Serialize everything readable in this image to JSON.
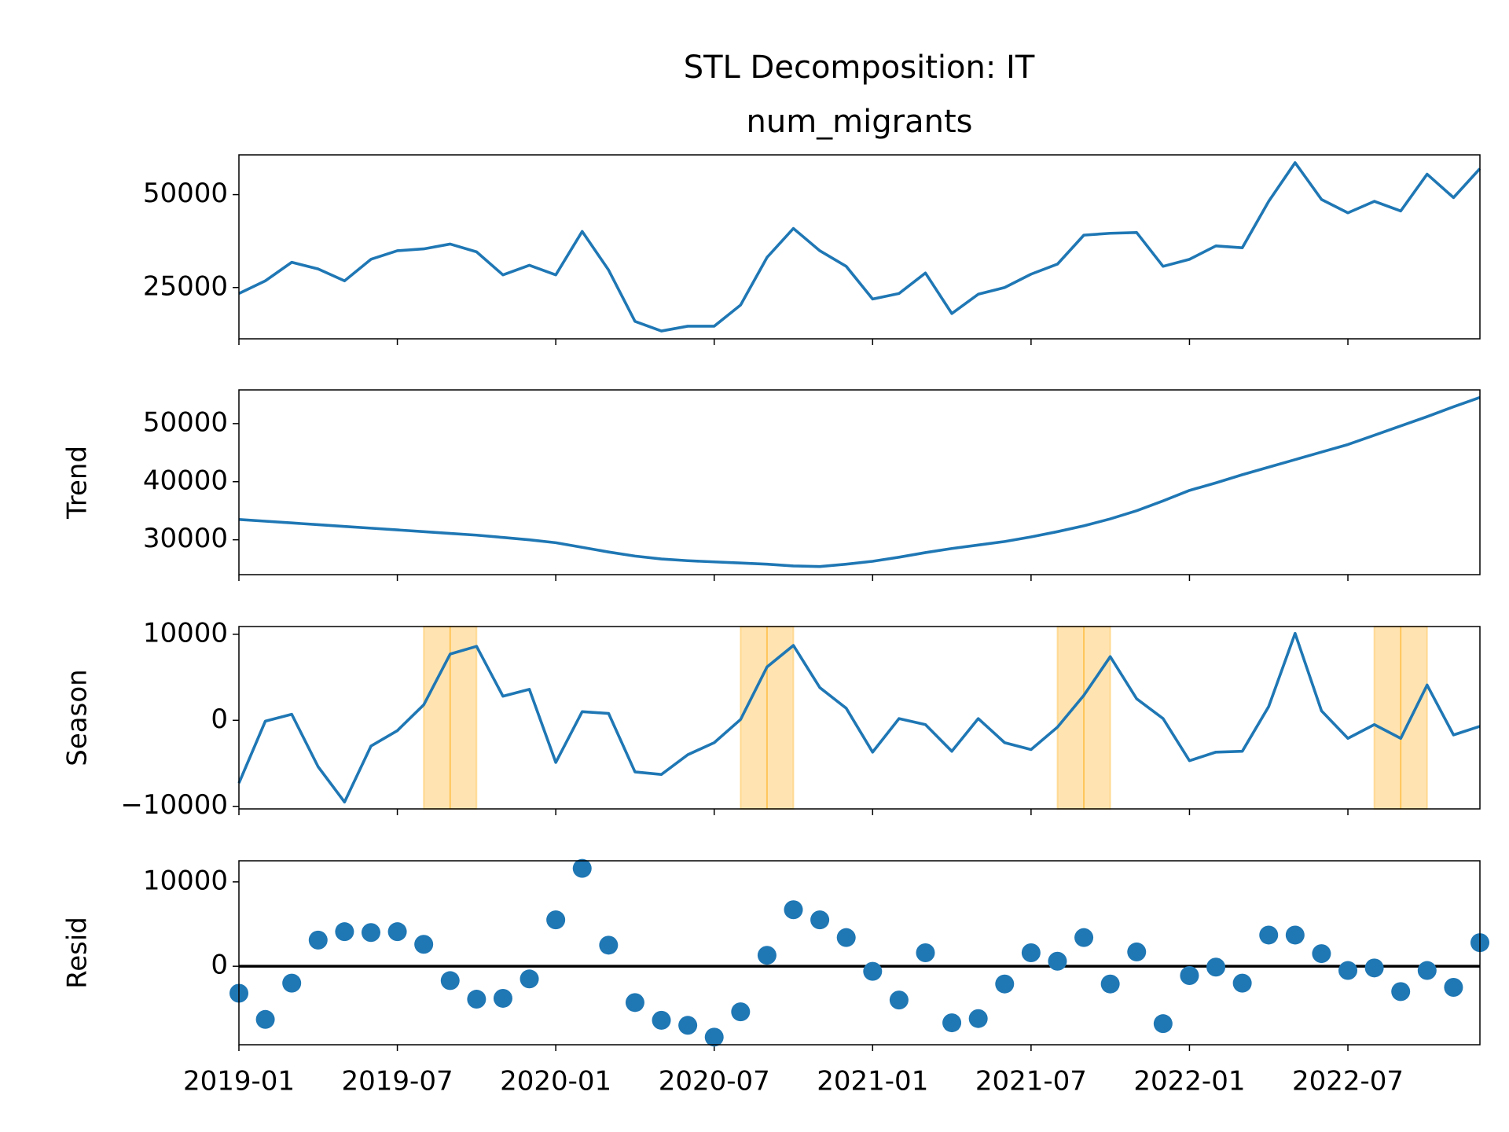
{
  "title": "STL Decomposition: IT",
  "chart_data": [
    {
      "type": "line",
      "title": "num_migrants",
      "color": "#1f77b4",
      "x": [
        "2019-01",
        "2019-02",
        "2019-03",
        "2019-04",
        "2019-05",
        "2019-06",
        "2019-07",
        "2019-08",
        "2019-09",
        "2019-10",
        "2019-11",
        "2019-12",
        "2020-01",
        "2020-02",
        "2020-03",
        "2020-04",
        "2020-05",
        "2020-06",
        "2020-07",
        "2020-08",
        "2020-09",
        "2020-10",
        "2020-11",
        "2020-12",
        "2021-01",
        "2021-02",
        "2021-03",
        "2021-04",
        "2021-05",
        "2021-06",
        "2021-07",
        "2021-08",
        "2021-09",
        "2021-10",
        "2021-11",
        "2021-12",
        "2022-01",
        "2022-02",
        "2022-03",
        "2022-04",
        "2022-05",
        "2022-06",
        "2022-07",
        "2022-08",
        "2022-09",
        "2022-10",
        "2022-11",
        "2022-12"
      ],
      "values": [
        23400,
        26800,
        31800,
        30000,
        26800,
        32600,
        34900,
        35400,
        36700,
        34600,
        28400,
        31000,
        28400,
        40100,
        29700,
        15900,
        13300,
        14600,
        14600,
        20300,
        33100,
        40900,
        34900,
        30700,
        21900,
        23400,
        28900,
        18000,
        23200,
        25000,
        28600,
        31300,
        39100,
        39600,
        39800,
        30700,
        32600,
        36200,
        35700,
        48200,
        58600,
        48700,
        45100,
        48200,
        45600,
        55500,
        49200,
        57000
      ],
      "xlim": [
        "2019-01",
        "2022-12"
      ],
      "xticks": [
        "2019-01",
        "2019-07",
        "2020-01",
        "2020-07",
        "2021-01",
        "2021-07",
        "2022-01",
        "2022-07"
      ],
      "ylim": [
        11200,
        60700
      ],
      "yticks": [
        25000,
        50000
      ]
    },
    {
      "type": "line",
      "ylabel": "Trend",
      "color": "#1f77b4",
      "x": [
        "2019-01",
        "2019-02",
        "2019-03",
        "2019-04",
        "2019-05",
        "2019-06",
        "2019-07",
        "2019-08",
        "2019-09",
        "2019-10",
        "2019-11",
        "2019-12",
        "2020-01",
        "2020-02",
        "2020-03",
        "2020-04",
        "2020-05",
        "2020-06",
        "2020-07",
        "2020-08",
        "2020-09",
        "2020-10",
        "2020-11",
        "2020-12",
        "2021-01",
        "2021-02",
        "2021-03",
        "2021-04",
        "2021-05",
        "2021-06",
        "2021-07",
        "2021-08",
        "2021-09",
        "2021-10",
        "2021-11",
        "2021-12",
        "2022-01",
        "2022-02",
        "2022-03",
        "2022-04",
        "2022-05",
        "2022-06",
        "2022-07",
        "2022-08",
        "2022-09",
        "2022-10",
        "2022-11",
        "2022-12"
      ],
      "values": [
        33500,
        33200,
        32900,
        32600,
        32300,
        32000,
        31700,
        31400,
        31100,
        30800,
        30400,
        30000,
        29500,
        28700,
        27900,
        27200,
        26700,
        26400,
        26200,
        26000,
        25800,
        25500,
        25400,
        25800,
        26300,
        27000,
        27800,
        28500,
        29100,
        29700,
        30500,
        31400,
        32400,
        33600,
        35000,
        36700,
        38500,
        39800,
        41200,
        42500,
        43800,
        45100,
        46400,
        48000,
        49600,
        51200,
        52900,
        54500
      ],
      "xlim": [
        "2019-01",
        "2022-12"
      ],
      "xticks": [
        "2019-01",
        "2019-07",
        "2020-01",
        "2020-07",
        "2021-01",
        "2021-07",
        "2022-01",
        "2022-07"
      ],
      "ylim": [
        24000,
        55800
      ],
      "yticks": [
        30000,
        40000,
        50000
      ]
    },
    {
      "type": "line",
      "ylabel": "Season",
      "color": "#1f77b4",
      "span_color": "#ffa500",
      "x": [
        "2019-01",
        "2019-02",
        "2019-03",
        "2019-04",
        "2019-05",
        "2019-06",
        "2019-07",
        "2019-08",
        "2019-09",
        "2019-10",
        "2019-11",
        "2019-12",
        "2020-01",
        "2020-02",
        "2020-03",
        "2020-04",
        "2020-05",
        "2020-06",
        "2020-07",
        "2020-08",
        "2020-09",
        "2020-10",
        "2020-11",
        "2020-12",
        "2021-01",
        "2021-02",
        "2021-03",
        "2021-04",
        "2021-05",
        "2021-06",
        "2021-07",
        "2021-08",
        "2021-09",
        "2021-10",
        "2021-11",
        "2021-12",
        "2022-01",
        "2022-02",
        "2022-03",
        "2022-04",
        "2022-05",
        "2022-06",
        "2022-07",
        "2022-08",
        "2022-09",
        "2022-10",
        "2022-11",
        "2022-12"
      ],
      "values": [
        -7300,
        -100,
        700,
        -5400,
        -9500,
        -3000,
        -1200,
        1800,
        7700,
        8600,
        2800,
        3600,
        -4900,
        1000,
        800,
        -6000,
        -6300,
        -4000,
        -2600,
        100,
        6200,
        8700,
        3800,
        1400,
        -3700,
        200,
        -500,
        -3600,
        200,
        -2600,
        -3400,
        -800,
        2900,
        7400,
        2500,
        200,
        -4700,
        -3700,
        -3600,
        1600,
        10100,
        1100,
        -2100,
        -500,
        -2100,
        4100,
        -1700,
        -700
      ],
      "spans": [
        {
          "start": "2019-08",
          "end": "2019-10"
        },
        {
          "start": "2020-08",
          "end": "2020-10"
        },
        {
          "start": "2021-08",
          "end": "2021-10"
        },
        {
          "start": "2022-08",
          "end": "2022-10"
        }
      ],
      "xlim": [
        "2019-01",
        "2022-12"
      ],
      "xticks": [
        "2019-01",
        "2019-07",
        "2020-01",
        "2020-07",
        "2021-01",
        "2021-07",
        "2022-01",
        "2022-07"
      ],
      "ylim": [
        -10300,
        10900
      ],
      "yticks": [
        {
          "value": -10000,
          "label": "−10000"
        },
        0,
        10000
      ]
    },
    {
      "type": "scatter",
      "ylabel": "Resid",
      "color": "#1f77b4",
      "hline": 0,
      "x": [
        "2019-01",
        "2019-02",
        "2019-03",
        "2019-04",
        "2019-05",
        "2019-06",
        "2019-07",
        "2019-08",
        "2019-09",
        "2019-10",
        "2019-11",
        "2019-12",
        "2020-01",
        "2020-02",
        "2020-03",
        "2020-04",
        "2020-05",
        "2020-06",
        "2020-07",
        "2020-08",
        "2020-09",
        "2020-10",
        "2020-11",
        "2020-12",
        "2021-01",
        "2021-02",
        "2021-03",
        "2021-04",
        "2021-05",
        "2021-06",
        "2021-07",
        "2021-08",
        "2021-09",
        "2021-10",
        "2021-11",
        "2021-12",
        "2022-01",
        "2022-02",
        "2022-03",
        "2022-04",
        "2022-05",
        "2022-06",
        "2022-07",
        "2022-08",
        "2022-09",
        "2022-10",
        "2022-11",
        "2022-12"
      ],
      "values": [
        -3200,
        -6300,
        -2000,
        3100,
        4100,
        4000,
        4100,
        2600,
        -1700,
        -3900,
        -3800,
        -1500,
        5500,
        11600,
        2500,
        -4300,
        -6400,
        -7000,
        -8400,
        -5400,
        1300,
        6700,
        5500,
        3400,
        -600,
        -4000,
        1600,
        -6700,
        -6200,
        -2100,
        1600,
        600,
        3400,
        -2100,
        1700,
        -6800,
        -1100,
        -100,
        -2000,
        3700,
        3700,
        1500,
        -500,
        -200,
        -3000,
        -500,
        -2500,
        2800
      ],
      "xlim": [
        "2019-01",
        "2022-12"
      ],
      "xticks": [
        "2019-01",
        "2019-07",
        "2020-01",
        "2020-07",
        "2021-01",
        "2021-07",
        "2022-01",
        "2022-07"
      ],
      "ylim": [
        -9300,
        12500
      ],
      "yticks": [
        0,
        10000
      ]
    }
  ]
}
